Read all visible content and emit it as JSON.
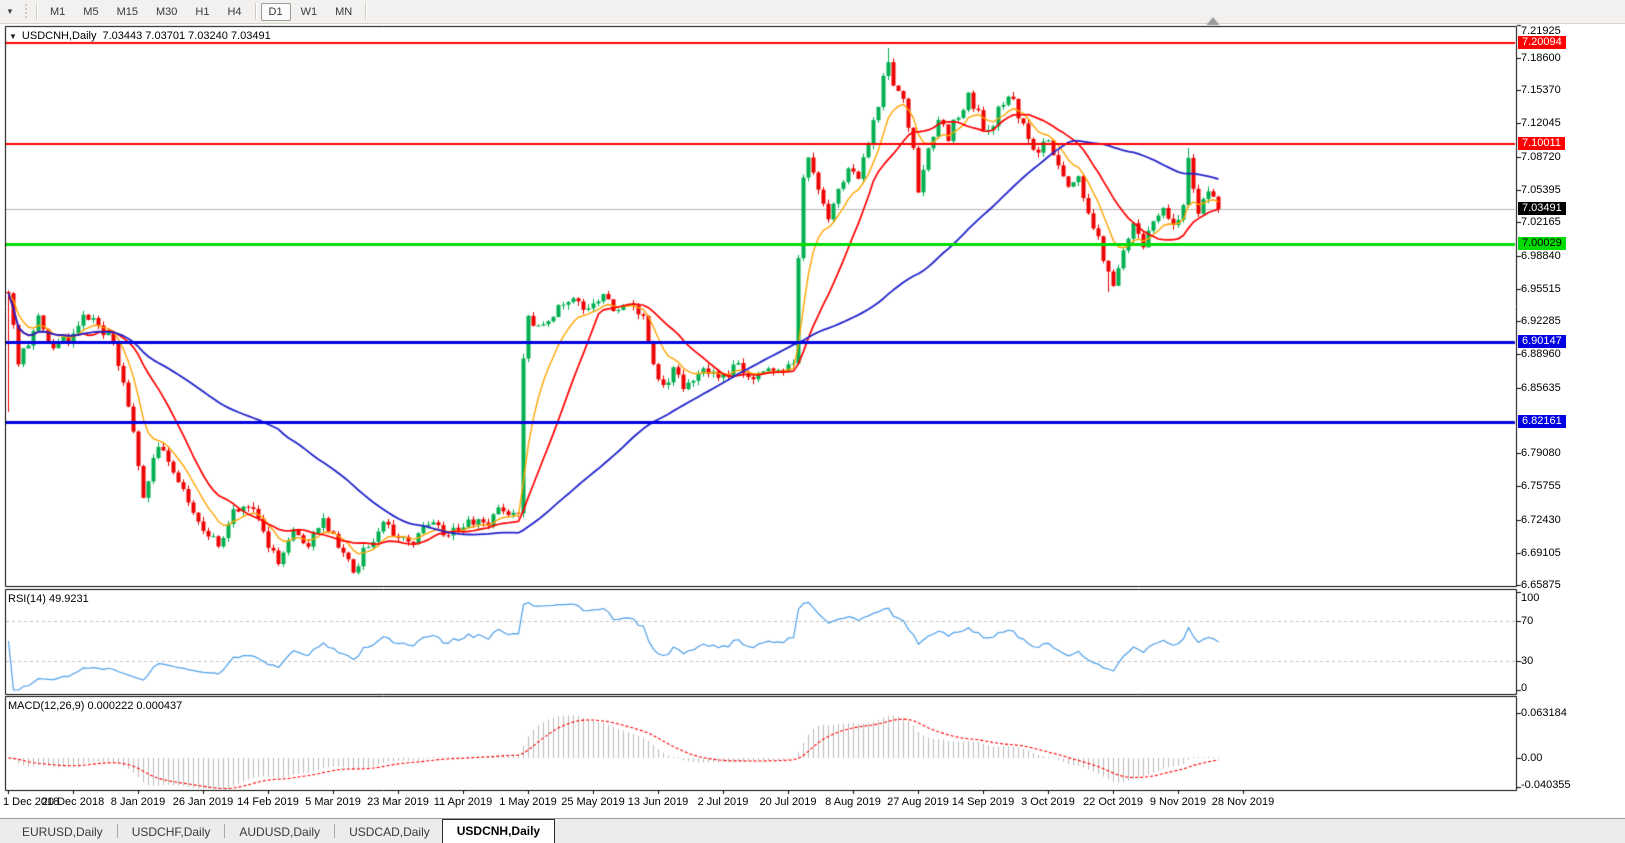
{
  "toolbar": {
    "dropdown_icon": "▼",
    "timeframes": [
      {
        "label": "M1",
        "active": false
      },
      {
        "label": "M5",
        "active": false
      },
      {
        "label": "M15",
        "active": false
      },
      {
        "label": "M30",
        "active": false
      },
      {
        "label": "H1",
        "active": false
      },
      {
        "label": "H4",
        "active": false
      },
      {
        "label": "D1",
        "active": true
      },
      {
        "label": "W1",
        "active": false
      },
      {
        "label": "MN",
        "active": false
      }
    ]
  },
  "chart_header": {
    "collapse_icon": "▼",
    "symbol": "USDCNH,Daily",
    "ohlc": "7.03443 7.03701 7.03240 7.03491"
  },
  "chart_data": {
    "type": "candlestick",
    "symbol": "USDCNH",
    "timeframe": "Daily",
    "open": "7.03443",
    "high": "7.03701",
    "low": "7.03240",
    "close": "7.03491",
    "price_axis_ticks": [
      "7.21925",
      "7.18600",
      "7.15370",
      "7.12045",
      "7.08720",
      "7.05395",
      "7.02165",
      "6.98840",
      "6.95515",
      "6.92285",
      "6.88960",
      "6.85635",
      "6.79080",
      "6.75755",
      "6.72430",
      "6.69105",
      "6.65875"
    ],
    "badges": [
      {
        "value": "7.20094",
        "bg": "#ff0000",
        "fg": "#ffffff"
      },
      {
        "value": "7.10011",
        "bg": "#ff0000",
        "fg": "#ffffff"
      },
      {
        "value": "7.03491",
        "bg": "#000000",
        "fg": "#ffffff"
      },
      {
        "value": "7.00029",
        "bg": "#00dc00",
        "fg": "#000000"
      },
      {
        "value": "6.90147",
        "bg": "#0000e0",
        "fg": "#ffffff"
      },
      {
        "value": "6.82161",
        "bg": "#0000e0",
        "fg": "#ffffff"
      }
    ],
    "hlines": [
      {
        "value": 7.20094,
        "color": "#ff0000",
        "width": 2
      },
      {
        "value": 7.10011,
        "color": "#ff0000",
        "width": 2
      },
      {
        "value": 7.00029,
        "color": "#00dc00",
        "width": 3
      },
      {
        "value": 6.90147,
        "color": "#0000e0",
        "width": 3
      },
      {
        "value": 6.82161,
        "color": "#0000e0",
        "width": 3
      }
    ],
    "bid_line": {
      "value": 7.03491,
      "color": "#b4b4b4"
    },
    "dates": [
      "1 Dec 2018",
      "20 Dec 2018",
      "8 Jan 2019",
      "26 Jan 2019",
      "14 Feb 2019",
      "5 Mar 2019",
      "23 Mar 2019",
      "11 Apr 2019",
      "1 May 2019",
      "25 May 2019",
      "13 Jun 2019",
      "2 Jul 2019",
      "20 Jul 2019",
      "8 Aug 2019",
      "27 Aug 2019",
      "14 Sep 2019",
      "3 Oct 2019",
      "22 Oct 2019",
      "9 Nov 2019",
      "28 Nov 2019"
    ],
    "candles": {
      "count": 243,
      "seed": 20191202,
      "noise": 0.006,
      "wick": 0.005,
      "up_color": "#00b050",
      "down_color": "#ee0000",
      "anchors": [
        [
          0,
          6.952
        ],
        [
          2,
          6.884
        ],
        [
          4,
          6.902
        ],
        [
          6,
          6.928
        ],
        [
          9,
          6.896
        ],
        [
          12,
          6.906
        ],
        [
          15,
          6.928
        ],
        [
          18,
          6.92
        ],
        [
          21,
          6.904
        ],
        [
          24,
          6.842
        ],
        [
          27,
          6.75
        ],
        [
          30,
          6.796
        ],
        [
          33,
          6.772
        ],
        [
          36,
          6.74
        ],
        [
          39,
          6.716
        ],
        [
          42,
          6.698
        ],
        [
          45,
          6.736
        ],
        [
          48,
          6.742
        ],
        [
          51,
          6.71
        ],
        [
          54,
          6.682
        ],
        [
          57,
          6.716
        ],
        [
          60,
          6.702
        ],
        [
          63,
          6.72
        ],
        [
          66,
          6.7
        ],
        [
          69,
          6.672
        ],
        [
          72,
          6.7
        ],
        [
          75,
          6.72
        ],
        [
          78,
          6.706
        ],
        [
          81,
          6.7
        ],
        [
          84,
          6.722
        ],
        [
          87,
          6.712
        ],
        [
          90,
          6.716
        ],
        [
          93,
          6.724
        ],
        [
          96,
          6.718
        ],
        [
          99,
          6.738
        ],
        [
          102,
          6.728
        ],
        [
          103,
          6.88
        ],
        [
          104,
          6.926
        ],
        [
          107,
          6.92
        ],
        [
          110,
          6.934
        ],
        [
          113,
          6.942
        ],
        [
          116,
          6.93
        ],
        [
          119,
          6.948
        ],
        [
          122,
          6.932
        ],
        [
          125,
          6.938
        ],
        [
          127,
          6.93
        ],
        [
          129,
          6.878
        ],
        [
          131,
          6.86
        ],
        [
          133,
          6.872
        ],
        [
          135,
          6.856
        ],
        [
          137,
          6.868
        ],
        [
          140,
          6.876
        ],
        [
          143,
          6.866
        ],
        [
          146,
          6.88
        ],
        [
          149,
          6.862
        ],
        [
          152,
          6.872
        ],
        [
          155,
          6.868
        ],
        [
          157,
          6.884
        ],
        [
          158,
          6.98
        ],
        [
          159,
          7.065
        ],
        [
          160,
          7.09
        ],
        [
          161,
          7.075
        ],
        [
          162,
          7.052
        ],
        [
          164,
          7.028
        ],
        [
          166,
          7.06
        ],
        [
          168,
          7.075
        ],
        [
          170,
          7.06
        ],
        [
          172,
          7.105
        ],
        [
          174,
          7.14
        ],
        [
          176,
          7.185
        ],
        [
          177,
          7.16
        ],
        [
          179,
          7.14
        ],
        [
          181,
          7.1
        ],
        [
          182,
          7.05
        ],
        [
          184,
          7.098
        ],
        [
          186,
          7.125
        ],
        [
          188,
          7.108
        ],
        [
          190,
          7.13
        ],
        [
          192,
          7.148
        ],
        [
          194,
          7.128
        ],
        [
          196,
          7.11
        ],
        [
          198,
          7.135
        ],
        [
          200,
          7.152
        ],
        [
          202,
          7.128
        ],
        [
          204,
          7.105
        ],
        [
          206,
          7.092
        ],
        [
          208,
          7.102
        ],
        [
          210,
          7.075
        ],
        [
          212,
          7.06
        ],
        [
          214,
          7.068
        ],
        [
          216,
          7.035
        ],
        [
          218,
          7.005
        ],
        [
          220,
          6.968
        ],
        [
          221,
          6.96
        ],
        [
          223,
          6.995
        ],
        [
          225,
          7.015
        ],
        [
          227,
          6.995
        ],
        [
          229,
          7.022
        ],
        [
          231,
          7.035
        ],
        [
          233,
          7.018
        ],
        [
          235,
          7.035
        ],
        [
          236,
          7.088
        ],
        [
          237,
          7.058
        ],
        [
          238,
          7.035
        ],
        [
          240,
          7.048
        ],
        [
          242,
          7.03491
        ]
      ],
      "wick_overrides": [
        {
          "i": 0,
          "low": 6.832
        },
        {
          "i": 176,
          "high": 7.196
        },
        {
          "i": 220,
          "low": 6.952
        },
        {
          "i": 236,
          "high": 7.096
        }
      ]
    },
    "moving_averages": [
      {
        "period": 8,
        "type": "ema",
        "color": "#ffa500",
        "width": 1.4
      },
      {
        "period": 16,
        "type": "sma",
        "color": "#ff0000",
        "width": 1.7
      },
      {
        "period": 55,
        "type": "sma",
        "color": "#2222cc",
        "width": 1.8
      }
    ],
    "rsi": {
      "label": "RSI(14) 49.9231",
      "period": 14,
      "current": "49.9231",
      "color": "#4d9fe8",
      "level_labels": [
        "100",
        "70",
        "30",
        "0"
      ],
      "dashed_levels": [
        70,
        30
      ],
      "dash_color": "#c0c0c0"
    },
    "macd": {
      "label": "MACD(12,26,9) 0.000222 0.000437",
      "fast": 12,
      "slow": 26,
      "signal_period": 9,
      "value": "0.000222",
      "signal_value": "0.000437",
      "hist_color": "#bbbbbb",
      "signal_color": "#ff0000",
      "axis_labels": [
        "0.063184",
        "0.00",
        "-0.040355"
      ]
    },
    "shift_marker_color": "#9a9a9a"
  },
  "tabs": [
    {
      "label": "EURUSD,Daily",
      "active": false
    },
    {
      "label": "USDCHF,Daily",
      "active": false
    },
    {
      "label": "AUDUSD,Daily",
      "active": false
    },
    {
      "label": "USDCAD,Daily",
      "active": false
    },
    {
      "label": "USDCNH,Daily",
      "active": true
    }
  ]
}
